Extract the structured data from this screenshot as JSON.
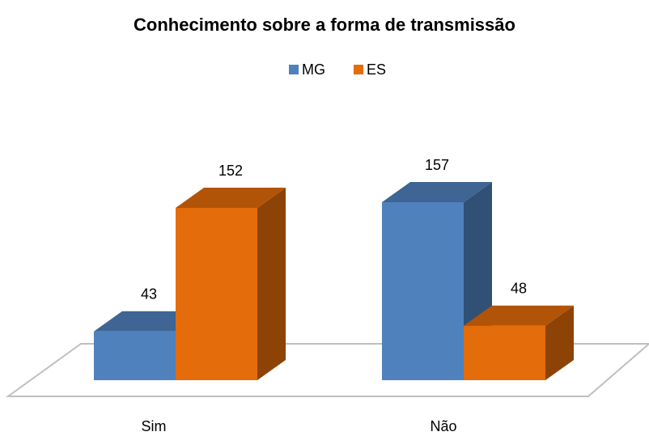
{
  "chart_data": {
    "type": "bar3d",
    "title": "Conhecimento sobre a forma de transmissão",
    "categories": [
      "Sim",
      "Não"
    ],
    "series": [
      {
        "name": "MG",
        "color": "#4f81bd",
        "values": [
          43,
          157
        ]
      },
      {
        "name": "ES",
        "color": "#e46c0a",
        "values": [
          152,
          48
        ]
      }
    ]
  }
}
